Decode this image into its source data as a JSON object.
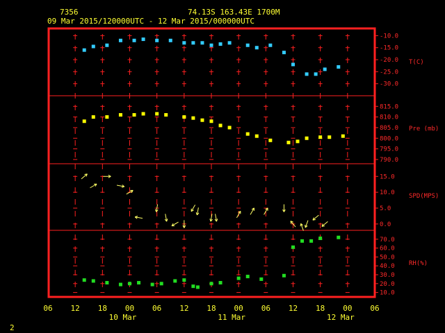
{
  "header": {
    "station_id": "7356",
    "location": "74.13S  163.43E  1700M",
    "period": "09 Mar 2015/120000UTC - 12 Mar 2015/000000UTC"
  },
  "footer": {
    "page_number": "2"
  },
  "colors": {
    "frame": "#ff2020",
    "grid": "#ff2020",
    "text": "#ffff33",
    "temperature": "#33ccff",
    "pressure": "#ffff00",
    "wind": "#ffff66",
    "rh": "#22dd22"
  },
  "chart_data": {
    "type": "scatter",
    "x_axis": {
      "ticks": [
        "06",
        "12",
        "18",
        "00",
        "06",
        "12",
        "18",
        "00",
        "06",
        "12",
        "18",
        "00",
        "06"
      ],
      "day_labels": [
        "10 Mar",
        "11 Mar",
        "12 Mar"
      ],
      "range_hours": [
        6,
        78
      ]
    },
    "panels": [
      {
        "key": "temp",
        "label": "T(C)",
        "ylim": [
          -35,
          -7
        ],
        "ticks": [
          "-10.0",
          "-15.0",
          "-20.0",
          "-25.0",
          "-30.0"
        ],
        "tick_values": [
          -10,
          -15,
          -20,
          -25,
          -30
        ],
        "series": [
          {
            "color": "#33ccff",
            "points": [
              [
                14,
                -16
              ],
              [
                16,
                -14.5
              ],
              [
                19,
                -14
              ],
              [
                22,
                -12
              ],
              [
                25,
                -12
              ],
              [
                27,
                -11.5
              ],
              [
                30,
                -12
              ],
              [
                33,
                -12
              ],
              [
                36,
                -13
              ],
              [
                38,
                -13
              ],
              [
                40,
                -13
              ],
              [
                42,
                -14
              ],
              [
                44,
                -13.5
              ],
              [
                46,
                -13
              ],
              [
                50,
                -14
              ],
              [
                52,
                -15
              ],
              [
                55,
                -14
              ],
              [
                58,
                -17
              ],
              [
                60,
                -22
              ],
              [
                63,
                -26
              ],
              [
                65,
                -26
              ],
              [
                67,
                -24
              ],
              [
                70,
                -23
              ]
            ]
          }
        ]
      },
      {
        "key": "pres",
        "label": "Pre (mb)",
        "ylim": [
          788,
          820
        ],
        "ticks": [
          "815.0",
          "810.0",
          "805.0",
          "800.0",
          "795.0",
          "790.0"
        ],
        "tick_values": [
          815,
          810,
          805,
          800,
          795,
          790
        ],
        "series": [
          {
            "color": "#ffff00",
            "points": [
              [
                14,
                808
              ],
              [
                16,
                810
              ],
              [
                19,
                810
              ],
              [
                22,
                811
              ],
              [
                25,
                811
              ],
              [
                27,
                811.5
              ],
              [
                30,
                811.5
              ],
              [
                32,
                811
              ],
              [
                36,
                810
              ],
              [
                38,
                809.5
              ],
              [
                40,
                808.5
              ],
              [
                42,
                808
              ],
              [
                44,
                806
              ],
              [
                46,
                805
              ],
              [
                50,
                802
              ],
              [
                52,
                801
              ],
              [
                55,
                799
              ],
              [
                59,
                798
              ],
              [
                61,
                798.5
              ],
              [
                63,
                800
              ],
              [
                66,
                800.5
              ],
              [
                68,
                800.5
              ],
              [
                71,
                801
              ]
            ]
          }
        ]
      },
      {
        "key": "wind",
        "label": "SPD(MPS)",
        "ylim": [
          -2,
          19
        ],
        "ticks": [
          "15.0",
          "10.0",
          "5.0",
          "0.0"
        ],
        "tick_values": [
          15,
          10,
          5,
          0
        ],
        "series": [
          {
            "color": "#ffff66",
            "points": [
              [
                14,
                15,
                40
              ],
              [
                16,
                12,
                30
              ],
              [
                19,
                15,
                0
              ],
              [
                22,
                12,
                -10
              ],
              [
                24,
                10,
                30
              ],
              [
                26,
                2,
                170
              ],
              [
                30,
                5,
                -100
              ],
              [
                32,
                2,
                -80
              ],
              [
                34,
                0,
                -150
              ],
              [
                36,
                0,
                -90
              ],
              [
                38,
                5,
                -120
              ],
              [
                39,
                4,
                -100
              ],
              [
                42,
                2,
                -100
              ],
              [
                43,
                2,
                -80
              ],
              [
                48,
                3,
                60
              ],
              [
                51,
                4,
                60
              ],
              [
                54,
                4,
                60
              ],
              [
                58,
                5,
                -90
              ],
              [
                60,
                0,
                130
              ],
              [
                62,
                -1,
                110
              ],
              [
                63,
                0,
                -110
              ],
              [
                65,
                2,
                -140
              ],
              [
                67,
                0,
                -140
              ]
            ]
          }
        ]
      },
      {
        "key": "rh",
        "label": "RH(%)",
        "ylim": [
          5,
          80
        ],
        "ticks": [
          "70.0",
          "60.0",
          "50.0",
          "40.0",
          "30.0",
          "20.0",
          "10.0"
        ],
        "tick_values": [
          70,
          60,
          50,
          40,
          30,
          20,
          10
        ],
        "series": [
          {
            "color": "#22dd22",
            "points": [
              [
                14,
                24
              ],
              [
                16,
                23
              ],
              [
                19,
                21
              ],
              [
                22,
                19
              ],
              [
                24,
                20
              ],
              [
                26,
                21
              ],
              [
                29,
                19
              ],
              [
                31,
                20
              ],
              [
                34,
                23
              ],
              [
                36,
                24
              ],
              [
                38,
                17
              ],
              [
                39,
                16
              ],
              [
                42,
                20
              ],
              [
                44,
                21
              ],
              [
                48,
                26
              ],
              [
                50,
                28
              ],
              [
                53,
                25
              ],
              [
                58,
                29
              ],
              [
                60,
                61
              ],
              [
                62,
                68
              ],
              [
                64,
                68
              ],
              [
                66,
                71
              ],
              [
                70,
                72
              ]
            ]
          }
        ]
      }
    ]
  }
}
